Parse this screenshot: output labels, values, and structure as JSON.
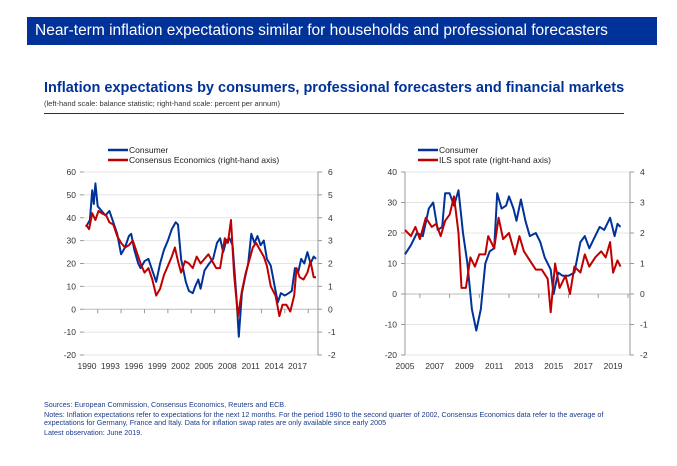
{
  "header": {
    "banner_title": "Near-term inflation expectations similar for households and professional forecasters"
  },
  "figure": {
    "title": "Inflation expectations by consumers, professional forecasters and financial markets",
    "subtitle": "(left-hand scale: balance statistic; right-hand scale: percent per annum)"
  },
  "colors": {
    "consumer": "#003299",
    "secondary": "#c00000",
    "banner": "#003299"
  },
  "notes": {
    "sources": "Sources: European Commission, Consensus Economics, Reuters and ECB.",
    "notes": "Notes: Inflation expectations refer to expectations for the next 12 months. For the period 1990 to the second quarter of 2002, Consensus Economics data refer to the average of expectations for Germany, France and Italy. Data for inflation swap rates are only available since early 2005",
    "latest": "Latest observation: June 2019."
  },
  "chart_data": [
    {
      "type": "line",
      "title": "",
      "legend": [
        "Consumer",
        "Consensus Economics (right-hand axis)"
      ],
      "legend_position": "top",
      "xlim": [
        1990,
        2019.5
      ],
      "x_tick_labels": [
        "1990",
        "1993",
        "1996",
        "1999",
        "2002",
        "2005",
        "2008",
        "2011",
        "2014",
        "2017"
      ],
      "ylim_left": [
        -20,
        60
      ],
      "y_ticks_left": [
        "60",
        "50",
        "40",
        "30",
        "20",
        "10",
        "0",
        "-10",
        "-20"
      ],
      "ylim_right": [
        -2,
        6
      ],
      "y_ticks_right": [
        "6",
        "5",
        "4",
        "3",
        "2",
        "1",
        "0",
        "-1",
        "-2"
      ],
      "grid": true,
      "series": [
        {
          "name": "Consumer",
          "axis": "left",
          "x": [
            1990,
            1990.5,
            1990.8,
            1991,
            1991.2,
            1991.5,
            1992,
            1992.5,
            1993,
            1993.5,
            1994,
            1994.5,
            1995,
            1995.5,
            1995.8,
            1996.2,
            1996.7,
            1997,
            1997.5,
            1998,
            1998.5,
            1999,
            1999.5,
            2000,
            2000.5,
            2001,
            2001.5,
            2001.8,
            2002.2,
            2002.8,
            2003.2,
            2003.7,
            2004,
            2004.4,
            2004.7,
            2005.2,
            2005.8,
            2006.3,
            2006.8,
            2007.2,
            2007.6,
            2008,
            2008.4,
            2008.8,
            2009.3,
            2009.6,
            2010,
            2010.4,
            2010.8,
            2011.2,
            2011.6,
            2012,
            2012.4,
            2012.8,
            2013.2,
            2013.7,
            2014.2,
            2014.6,
            2015,
            2015.5,
            2016,
            2016.4,
            2016.8,
            2017.2,
            2017.6,
            2018,
            2018.4,
            2018.8,
            2019.2,
            2019.5
          ],
          "y": [
            36,
            39,
            52,
            46,
            55,
            45,
            43,
            41,
            43,
            38,
            33,
            24,
            27,
            32,
            33,
            26,
            20,
            18,
            21,
            22,
            17,
            12,
            20,
            26,
            30,
            35,
            38,
            37,
            22,
            12,
            8,
            7,
            10,
            13,
            9,
            17,
            20,
            22,
            29,
            31,
            25,
            30,
            31,
            28,
            5,
            -12,
            7,
            14,
            20,
            33,
            29,
            32,
            28,
            30,
            22,
            19,
            10,
            3,
            7,
            6,
            7,
            8,
            18,
            16,
            22,
            20,
            25,
            20,
            23,
            22
          ]
        },
        {
          "name": "Consensus Economics (right-hand axis)",
          "axis": "right",
          "x": [
            1990,
            1990.4,
            1990.8,
            1991.2,
            1991.6,
            1992,
            1992.6,
            1993,
            1993.5,
            1994,
            1994.5,
            1995,
            1995.5,
            1996,
            1996.5,
            1997,
            1997.5,
            1998,
            1998.5,
            1999,
            1999.5,
            2000,
            2000.5,
            2001,
            2001.4,
            2001.8,
            2002.2,
            2002.7,
            2003.2,
            2003.7,
            2004.2,
            2004.7,
            2005.2,
            2005.7,
            2006.2,
            2006.7,
            2007.2,
            2007.8,
            2008.2,
            2008.6,
            2009,
            2009.5,
            2010,
            2010.5,
            2011,
            2011.4,
            2011.8,
            2012.3,
            2012.8,
            2013.2,
            2013.7,
            2014.3,
            2014.8,
            2015.2,
            2015.7,
            2016.2,
            2016.7,
            2017,
            2017.4,
            2017.9,
            2018.4,
            2018.8,
            2019.2,
            2019.5
          ],
          "y": [
            3.7,
            3.5,
            4.2,
            3.9,
            4.3,
            4.2,
            4.1,
            3.8,
            3.7,
            3.2,
            2.9,
            2.7,
            2.8,
            3.0,
            2.5,
            2.0,
            1.6,
            1.8,
            1.3,
            0.6,
            0.9,
            1.5,
            1.9,
            2.3,
            2.7,
            2.1,
            1.6,
            2.1,
            2.0,
            1.8,
            2.3,
            2.0,
            2.2,
            2.4,
            2.1,
            1.8,
            1.8,
            3.1,
            2.9,
            3.9,
            1.5,
            -0.3,
            0.8,
            1.6,
            2.2,
            2.7,
            2.9,
            2.6,
            2.3,
            1.9,
            1.0,
            0.6,
            -0.3,
            0.2,
            0.2,
            -0.1,
            0.6,
            1.8,
            1.4,
            1.3,
            1.6,
            2.1,
            1.4,
            1.4
          ]
        }
      ]
    },
    {
      "type": "line",
      "title": "",
      "legend": [
        "Consumer",
        "ILS spot rate (right-hand axis)"
      ],
      "legend_position": "top",
      "xlim": [
        2005,
        2019.6
      ],
      "x_tick_labels": [
        "2005",
        "2007",
        "2009",
        "2011",
        "2013",
        "2015",
        "2017",
        "2019"
      ],
      "ylim_left": [
        -20,
        40
      ],
      "y_ticks_left": [
        "40",
        "30",
        "20",
        "10",
        "0",
        "-10",
        "-20"
      ],
      "ylim_right": [
        -2,
        4
      ],
      "y_ticks_right": [
        "4",
        "3",
        "2",
        "1",
        "0",
        "-1",
        "-2"
      ],
      "grid": true,
      "series": [
        {
          "name": "Consumer",
          "axis": "left",
          "x": [
            2005,
            2005.4,
            2005.8,
            2006.2,
            2006.6,
            2006.9,
            2007.2,
            2007.5,
            2007.7,
            2008,
            2008.3,
            2008.6,
            2008.9,
            2009.2,
            2009.5,
            2009.8,
            2010.1,
            2010.4,
            2010.7,
            2011,
            2011.2,
            2011.5,
            2011.8,
            2012,
            2012.3,
            2012.5,
            2012.8,
            2013.1,
            2013.4,
            2013.8,
            2014.1,
            2014.4,
            2014.8,
            2015,
            2015.3,
            2015.6,
            2016,
            2016.4,
            2016.8,
            2017.1,
            2017.4,
            2017.8,
            2018.1,
            2018.4,
            2018.8,
            2019.1,
            2019.3,
            2019.5
          ],
          "y": [
            13,
            16,
            20,
            19,
            28,
            30,
            21,
            22,
            33,
            33,
            29,
            34,
            20,
            10,
            -5,
            -12,
            -5,
            10,
            14,
            15,
            33,
            28,
            29,
            32,
            28,
            24,
            31,
            24,
            19,
            20,
            17,
            12,
            8,
            0,
            7,
            6,
            6,
            7,
            17,
            19,
            15,
            19,
            22,
            21,
            25,
            19,
            23,
            22
          ]
        },
        {
          "name": "ILS spot rate (right-hand axis)",
          "axis": "right",
          "x": [
            2005,
            2005.4,
            2005.7,
            2006,
            2006.4,
            2006.8,
            2007.1,
            2007.4,
            2007.7,
            2008,
            2008.3,
            2008.6,
            2008.8,
            2009.1,
            2009.4,
            2009.7,
            2010,
            2010.4,
            2010.6,
            2011,
            2011.3,
            2011.6,
            2012,
            2012.4,
            2012.7,
            2013,
            2013.4,
            2013.8,
            2014.2,
            2014.6,
            2014.8,
            2015.1,
            2015.4,
            2015.8,
            2016.1,
            2016.4,
            2016.8,
            2017.1,
            2017.4,
            2017.8,
            2018.2,
            2018.5,
            2018.8,
            2019,
            2019.3,
            2019.5
          ],
          "y": [
            2.1,
            1.9,
            2.2,
            1.8,
            2.5,
            2.2,
            2.3,
            1.9,
            2.4,
            2.6,
            3.2,
            2.0,
            0.2,
            0.2,
            1.2,
            0.9,
            1.3,
            1.3,
            1.9,
            1.5,
            2.5,
            1.8,
            2.0,
            1.3,
            1.9,
            1.4,
            1.1,
            0.8,
            0.8,
            0.5,
            -0.6,
            1.0,
            0.2,
            0.6,
            0.0,
            0.9,
            0.7,
            1.3,
            0.9,
            1.2,
            1.4,
            1.2,
            1.7,
            0.7,
            1.1,
            0.9
          ]
        }
      ]
    }
  ]
}
